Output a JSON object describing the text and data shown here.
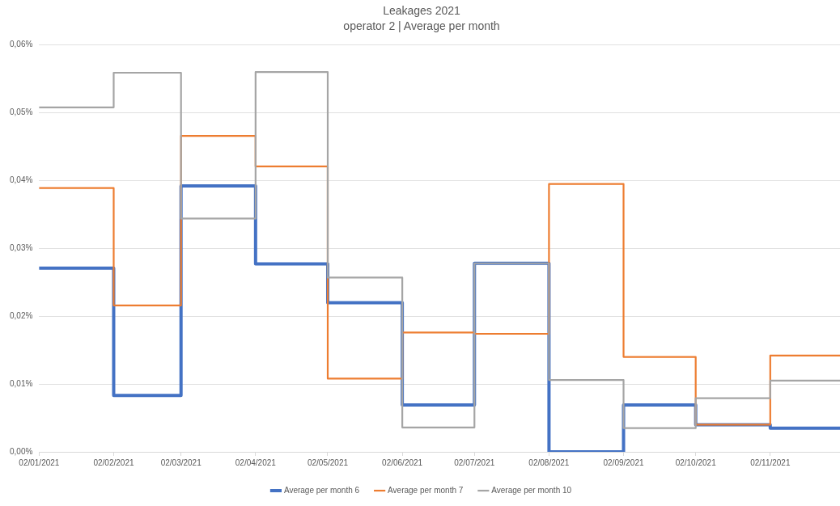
{
  "chart_data": {
    "type": "step",
    "title": "Leakages 2021",
    "subtitle": "operator 2 | Average per month",
    "x": [
      "2021-01-02",
      "2021-02-02",
      "2021-03-02",
      "2021-04-02",
      "2021-05-02",
      "2021-06-02",
      "2021-07-02",
      "2021-08-02",
      "2021-09-02",
      "2021-10-02",
      "2021-11-02",
      "2021-12-01"
    ],
    "series": [
      {
        "name": "Average per month 6",
        "color": "#4472c4",
        "values": [
          0.0271,
          0.0083,
          0.0392,
          0.0277,
          0.022,
          0.0069,
          0.0278,
          0,
          0.0069,
          0.004,
          0.0035,
          0.0035
        ]
      },
      {
        "name": "Average per month 7",
        "color": "#ed7d31",
        "values": [
          0.0389,
          0.0216,
          0.0466,
          0.0421,
          0.0108,
          0.0176,
          0.0174,
          0.0395,
          0.014,
          0.004,
          0.0142,
          0.0142
        ]
      },
      {
        "name": "Average per month 10",
        "color": "#a5a5a5",
        "values": [
          0.0508,
          0.0559,
          0.0344,
          0.056,
          0.0257,
          0.0036,
          0.0278,
          0.0106,
          0.0035,
          0.0079,
          0.0105,
          0.0105
        ]
      }
    ],
    "xlim": [
      "2021-01-02",
      "2021-12-01"
    ],
    "xticks": [
      {
        "value": "2021-01-02",
        "label": "02/01/2021"
      },
      {
        "value": "2021-02-02",
        "label": "02/02/2021"
      },
      {
        "value": "2021-03-02",
        "label": "02/03/2021"
      },
      {
        "value": "2021-04-02",
        "label": "02/04/2021"
      },
      {
        "value": "2021-05-02",
        "label": "02/05/2021"
      },
      {
        "value": "2021-06-02",
        "label": "02/06/2021"
      },
      {
        "value": "2021-07-02",
        "label": "02/07/2021"
      },
      {
        "value": "2021-08-02",
        "label": "02/08/2021"
      },
      {
        "value": "2021-09-02",
        "label": "02/09/2021"
      },
      {
        "value": "2021-10-02",
        "label": "02/10/2021"
      },
      {
        "value": "2021-11-02",
        "label": "02/11/2021"
      }
    ],
    "ylim": [
      0,
      0.06
    ],
    "yticks": [
      {
        "value": 0,
        "label": "0,00%"
      },
      {
        "value": 0.01,
        "label": "0,01%"
      },
      {
        "value": 0.02,
        "label": "0,02%"
      },
      {
        "value": 0.03,
        "label": "0,03%"
      },
      {
        "value": 0.04,
        "label": "0,04%"
      },
      {
        "value": 0.05,
        "label": "0,05%"
      },
      {
        "value": 0.06,
        "label": "0,06%"
      }
    ],
    "grid": "y",
    "legend": "bottom",
    "marker": "none",
    "line_style": "solid"
  }
}
